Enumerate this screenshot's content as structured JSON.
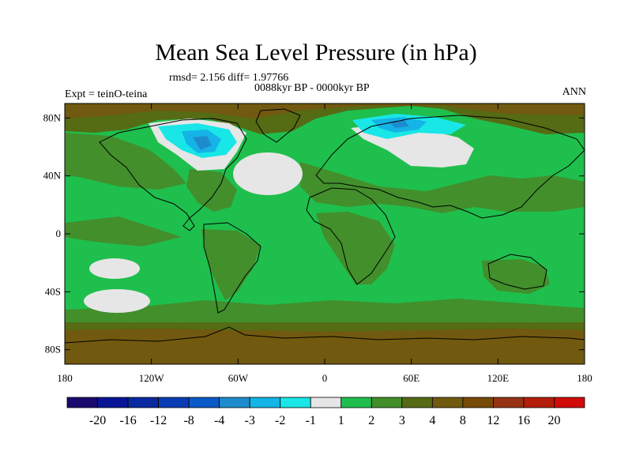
{
  "title": "Mean Sea Level Pressure (in hPa)",
  "stats_line": "rmsd= 2.156 diff= 1.97766",
  "period_line": "0088kyr BP - 0000kyr BP",
  "experiment_label": "Expt = teinO-teina",
  "season_label": "ANN",
  "map": {
    "projection": "cylindrical equidistant",
    "lon_range": [
      -180,
      180
    ],
    "lat_range": [
      -90,
      90
    ],
    "lat_ticks": [
      {
        "value": 80,
        "label": "80N"
      },
      {
        "value": 40,
        "label": "40N"
      },
      {
        "value": 0,
        "label": "0"
      },
      {
        "value": -40,
        "label": "40S"
      },
      {
        "value": -80,
        "label": "80S"
      }
    ],
    "lon_ticks": [
      {
        "value": -180,
        "label": "180"
      },
      {
        "value": -120,
        "label": "120W"
      },
      {
        "value": -60,
        "label": "60W"
      },
      {
        "value": 0,
        "label": "0"
      },
      {
        "value": 60,
        "label": "60E"
      },
      {
        "value": 120,
        "label": "120E"
      },
      {
        "value": 180,
        "label": "180"
      }
    ],
    "colors": {
      "level_1_2": "#1fbf4d",
      "level_2_3": "#428f2c",
      "level_3_4": "#556b14",
      "level_4_8": "#71590f",
      "level_m1_1": "#e6e6e6",
      "level_m2_m1": "#19e6e6",
      "level_m3_m2": "#14b4e6",
      "level_m4_m3": "#1e8ccc",
      "coastline": "#000000"
    }
  },
  "colorbar": {
    "colors": [
      "#1a0a6e",
      "#0a1496",
      "#0a28a0",
      "#0a3cb4",
      "#0a5ac8",
      "#1e8ccc",
      "#14b4e6",
      "#19e6e6",
      "#e6e6e6",
      "#1fbf4d",
      "#428f2c",
      "#556b14",
      "#71590f",
      "#784a08",
      "#963214",
      "#b41e0a",
      "#d20a0a"
    ],
    "labels": [
      "-20",
      "-16",
      "-12",
      "-8",
      "-4",
      "-3",
      "-2",
      "-1",
      "1",
      "2",
      "3",
      "4",
      "8",
      "12",
      "16",
      "20"
    ]
  }
}
